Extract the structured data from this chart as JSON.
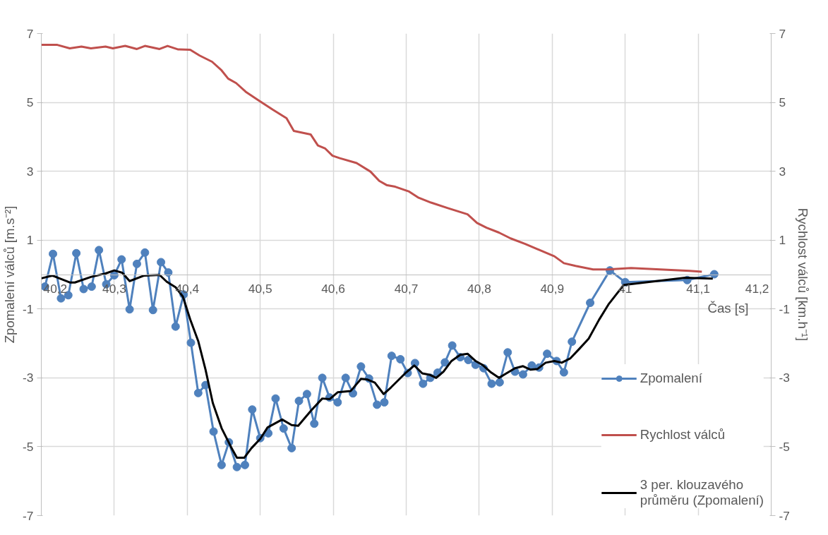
{
  "chart_data": {
    "type": "line",
    "xlabel": "Čas [s]",
    "ylabel": "Zpomalení válců [m.s⁻²]",
    "y2label": "Rychlost válců [km.h⁻¹]",
    "xlim": [
      40.2,
      41.2
    ],
    "xticks": [
      {
        "value": 40.2,
        "label": "40,2"
      },
      {
        "value": 40.3,
        "label": "40,3"
      },
      {
        "value": 40.4,
        "label": "40,4"
      },
      {
        "value": 40.5,
        "label": "40,5"
      },
      {
        "value": 40.6,
        "label": "40,6"
      },
      {
        "value": 40.7,
        "label": "40,7"
      },
      {
        "value": 40.8,
        "label": "40,8"
      },
      {
        "value": 40.9,
        "label": "40,9"
      },
      {
        "value": 41.0,
        "label": "41"
      },
      {
        "value": 41.1,
        "label": "41,1"
      },
      {
        "value": 41.2,
        "label": "41,2"
      }
    ],
    "ylim": [
      -7,
      7
    ],
    "yticks": [
      -7,
      -5,
      -3,
      -1,
      1,
      3,
      5,
      7
    ],
    "y2lim": [
      -7,
      7
    ],
    "y2ticks": [
      -7,
      -5,
      -3,
      -1,
      1,
      3,
      5,
      7
    ],
    "grid": true,
    "legend": "bottom right",
    "line_style": "solid",
    "series": [
      {
        "name": "Zpomalení",
        "color": "#4f81bd",
        "marker": "circle",
        "x": [
          40.205,
          40.216,
          40.227,
          40.237,
          40.248,
          40.258,
          40.269,
          40.279,
          40.289,
          40.3,
          40.31,
          40.321,
          40.331,
          40.342,
          40.353,
          40.364,
          40.374,
          40.384,
          40.395,
          40.405,
          40.415,
          40.425,
          40.436,
          40.447,
          40.457,
          40.468,
          40.479,
          40.489,
          40.5,
          40.511,
          40.521,
          40.532,
          40.543,
          40.553,
          40.564,
          40.574,
          40.585,
          40.595,
          40.606,
          40.617,
          40.627,
          40.638,
          40.649,
          40.66,
          40.67,
          40.68,
          40.692,
          40.702,
          40.712,
          40.723,
          40.733,
          40.743,
          40.753,
          40.763,
          40.774,
          40.785,
          40.795,
          40.806,
          40.817,
          40.828,
          40.839,
          40.849,
          40.86,
          40.872,
          40.882,
          40.893,
          40.906,
          40.916,
          40.927,
          40.952,
          40.979,
          41.0,
          41.085,
          41.122
        ],
        "values": [
          -0.35,
          0.6,
          -0.69,
          -0.6,
          0.62,
          -0.42,
          -0.35,
          0.71,
          -0.28,
          -0.02,
          0.44,
          -1.01,
          0.31,
          0.64,
          -1.03,
          0.36,
          0.06,
          -1.51,
          -0.58,
          -1.98,
          -3.44,
          -3.21,
          -4.56,
          -5.53,
          -4.87,
          -5.59,
          -5.53,
          -3.92,
          -4.75,
          -4.61,
          -3.6,
          -4.47,
          -5.04,
          -3.67,
          -3.47,
          -4.33,
          -3.0,
          -3.57,
          -3.71,
          -3.0,
          -3.45,
          -2.67,
          -3.02,
          -3.78,
          -3.71,
          -2.36,
          -2.46,
          -2.86,
          -2.57,
          -3.17,
          -3.0,
          -2.85,
          -2.55,
          -2.06,
          -2.4,
          -2.48,
          -2.62,
          -2.72,
          -3.17,
          -3.13,
          -2.26,
          -2.82,
          -2.9,
          -2.64,
          -2.7,
          -2.3,
          -2.51,
          -2.84,
          -1.95,
          -0.82,
          0.12,
          -0.22,
          -0.16,
          0.01
        ]
      },
      {
        "name": "Rychlost válců",
        "color": "#c0504d",
        "marker": "none",
        "x": [
          40.2,
          40.222,
          40.239,
          40.255,
          40.268,
          40.288,
          40.298,
          40.315,
          40.331,
          40.342,
          40.362,
          40.373,
          40.387,
          40.404,
          40.417,
          40.434,
          40.447,
          40.456,
          40.467,
          40.48,
          40.497,
          40.517,
          40.536,
          40.546,
          40.569,
          40.579,
          40.589,
          40.599,
          40.609,
          40.632,
          40.651,
          40.663,
          40.673,
          40.685,
          40.704,
          40.717,
          40.734,
          40.757,
          40.784,
          40.797,
          40.81,
          40.827,
          40.843,
          40.863,
          40.883,
          40.903,
          40.916,
          40.932,
          40.956,
          40.976,
          41.008,
          41.048,
          41.088,
          41.105
        ],
        "values": [
          6.67,
          6.67,
          6.57,
          6.62,
          6.57,
          6.62,
          6.57,
          6.64,
          6.55,
          6.64,
          6.55,
          6.64,
          6.54,
          6.53,
          6.36,
          6.18,
          5.93,
          5.69,
          5.56,
          5.31,
          5.07,
          4.79,
          4.54,
          4.17,
          4.07,
          3.75,
          3.66,
          3.45,
          3.38,
          3.24,
          2.99,
          2.72,
          2.6,
          2.55,
          2.41,
          2.23,
          2.09,
          1.93,
          1.75,
          1.5,
          1.36,
          1.22,
          1.05,
          0.89,
          0.71,
          0.53,
          0.33,
          0.25,
          0.15,
          0.15,
          0.19,
          0.15,
          0.11,
          0.08
        ]
      },
      {
        "name": "3 per. klouzavého průměru (Zpomalení)",
        "color": "#000000",
        "marker": "none",
        "x": [
          40.2,
          40.215,
          40.239,
          40.246,
          40.268,
          40.288,
          40.3,
          40.311,
          40.321,
          40.341,
          40.362,
          40.372,
          40.384,
          40.394,
          40.404,
          40.415,
          40.425,
          40.435,
          40.447,
          40.46,
          40.468,
          40.478,
          40.488,
          40.5,
          40.51,
          40.53,
          40.543,
          40.552,
          40.57,
          40.585,
          40.595,
          40.606,
          40.624,
          40.638,
          40.647,
          40.657,
          40.669,
          40.679,
          40.7,
          40.711,
          40.722,
          40.732,
          40.741,
          40.751,
          40.762,
          40.774,
          40.784,
          40.795,
          40.805,
          40.816,
          40.827,
          40.838,
          40.849,
          40.86,
          40.87,
          40.88,
          40.891,
          40.903,
          40.913,
          40.925,
          40.937,
          40.95,
          40.964,
          40.977,
          40.998,
          41.082,
          41.12
        ],
        "values": [
          -0.11,
          -0.03,
          -0.23,
          -0.23,
          -0.07,
          0.03,
          0.12,
          0.05,
          -0.19,
          -0.03,
          -0.01,
          -0.21,
          -0.37,
          -0.64,
          -1.3,
          -1.93,
          -2.76,
          -3.73,
          -4.46,
          -5.01,
          -5.32,
          -5.32,
          -5.04,
          -4.77,
          -4.44,
          -4.21,
          -4.37,
          -4.39,
          -3.94,
          -3.6,
          -3.62,
          -3.42,
          -3.38,
          -3.03,
          -3.05,
          -3.14,
          -3.47,
          -3.28,
          -2.84,
          -2.64,
          -2.87,
          -2.91,
          -3.0,
          -2.82,
          -2.51,
          -2.33,
          -2.3,
          -2.51,
          -2.63,
          -2.84,
          -3.0,
          -2.86,
          -2.72,
          -2.66,
          -2.76,
          -2.74,
          -2.56,
          -2.51,
          -2.56,
          -2.43,
          -2.16,
          -1.86,
          -1.32,
          -0.87,
          -0.3,
          -0.09,
          -0.12
        ]
      }
    ]
  }
}
